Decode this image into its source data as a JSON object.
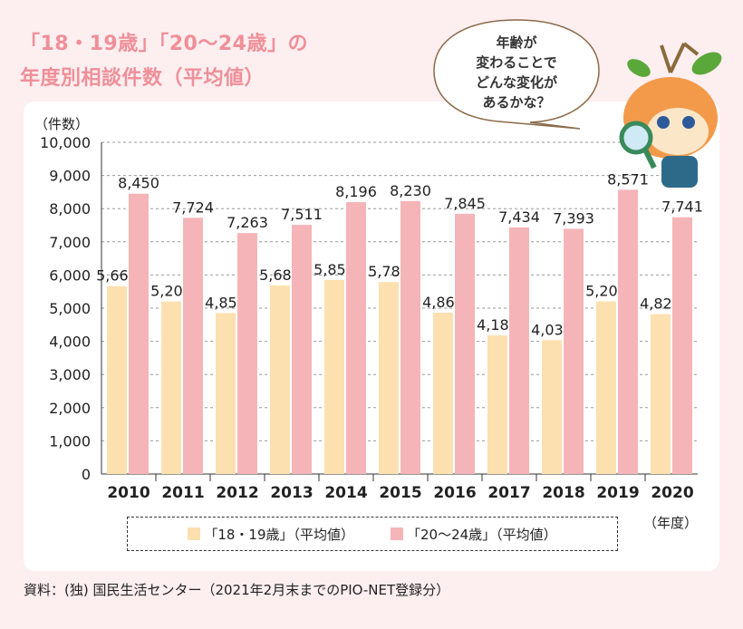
{
  "title": {
    "line1": "「18・19歳」「20〜24歳」の",
    "line2": "年度別相談件数（平均値）"
  },
  "speech_bubble": {
    "lines": [
      "年齢が",
      "変わることで",
      "どんな変化が",
      "あるかな？"
    ]
  },
  "source": "資料：(独) 国民生活センター（2021年2月末までのPIO-NET登録分）",
  "colors": {
    "series1": "#fde0b0",
    "series2": "#f5b5b8",
    "title": "#ef8f98",
    "background": "#fdeef0"
  },
  "mascot_icon": "orange-mascot-with-magnifying-glass",
  "chart_data": {
    "type": "bar",
    "ylabel": "（件数）",
    "xlabel": "（年度）",
    "ylim": [
      0,
      10000
    ],
    "yticks": [
      "0",
      "1,000",
      "2,000",
      "3,000",
      "4,000",
      "5,000",
      "6,000",
      "7,000",
      "8,000",
      "9,000",
      "10,000"
    ],
    "grid": true,
    "legend_placement": "bottom",
    "categories": [
      "2010",
      "2011",
      "2012",
      "2013",
      "2014",
      "2015",
      "2016",
      "2017",
      "2018",
      "2019",
      "2020"
    ],
    "series": [
      {
        "name": "「18・19歳」（平均値）",
        "values": [
          5665,
          5200,
          4852,
          5686,
          5852,
          5787,
          4861,
          4180,
          4035,
          5203,
          4820
        ],
        "labels": [
          "5,665",
          "5,200",
          "4,852",
          "5,686",
          "5,852",
          "5,787",
          "4,861",
          "4,180",
          "4,035",
          "5,203",
          "4,820"
        ]
      },
      {
        "name": "「20〜24歳」（平均値）",
        "values": [
          8450,
          7724,
          7263,
          7511,
          8196,
          8230,
          7845,
          7434,
          7393,
          8571,
          7741
        ],
        "labels": [
          "8,450",
          "7,724",
          "7,263",
          "7,511",
          "8,196",
          "8,230",
          "7,845",
          "7,434",
          "7,393",
          "8,571",
          "7,741"
        ]
      }
    ]
  }
}
